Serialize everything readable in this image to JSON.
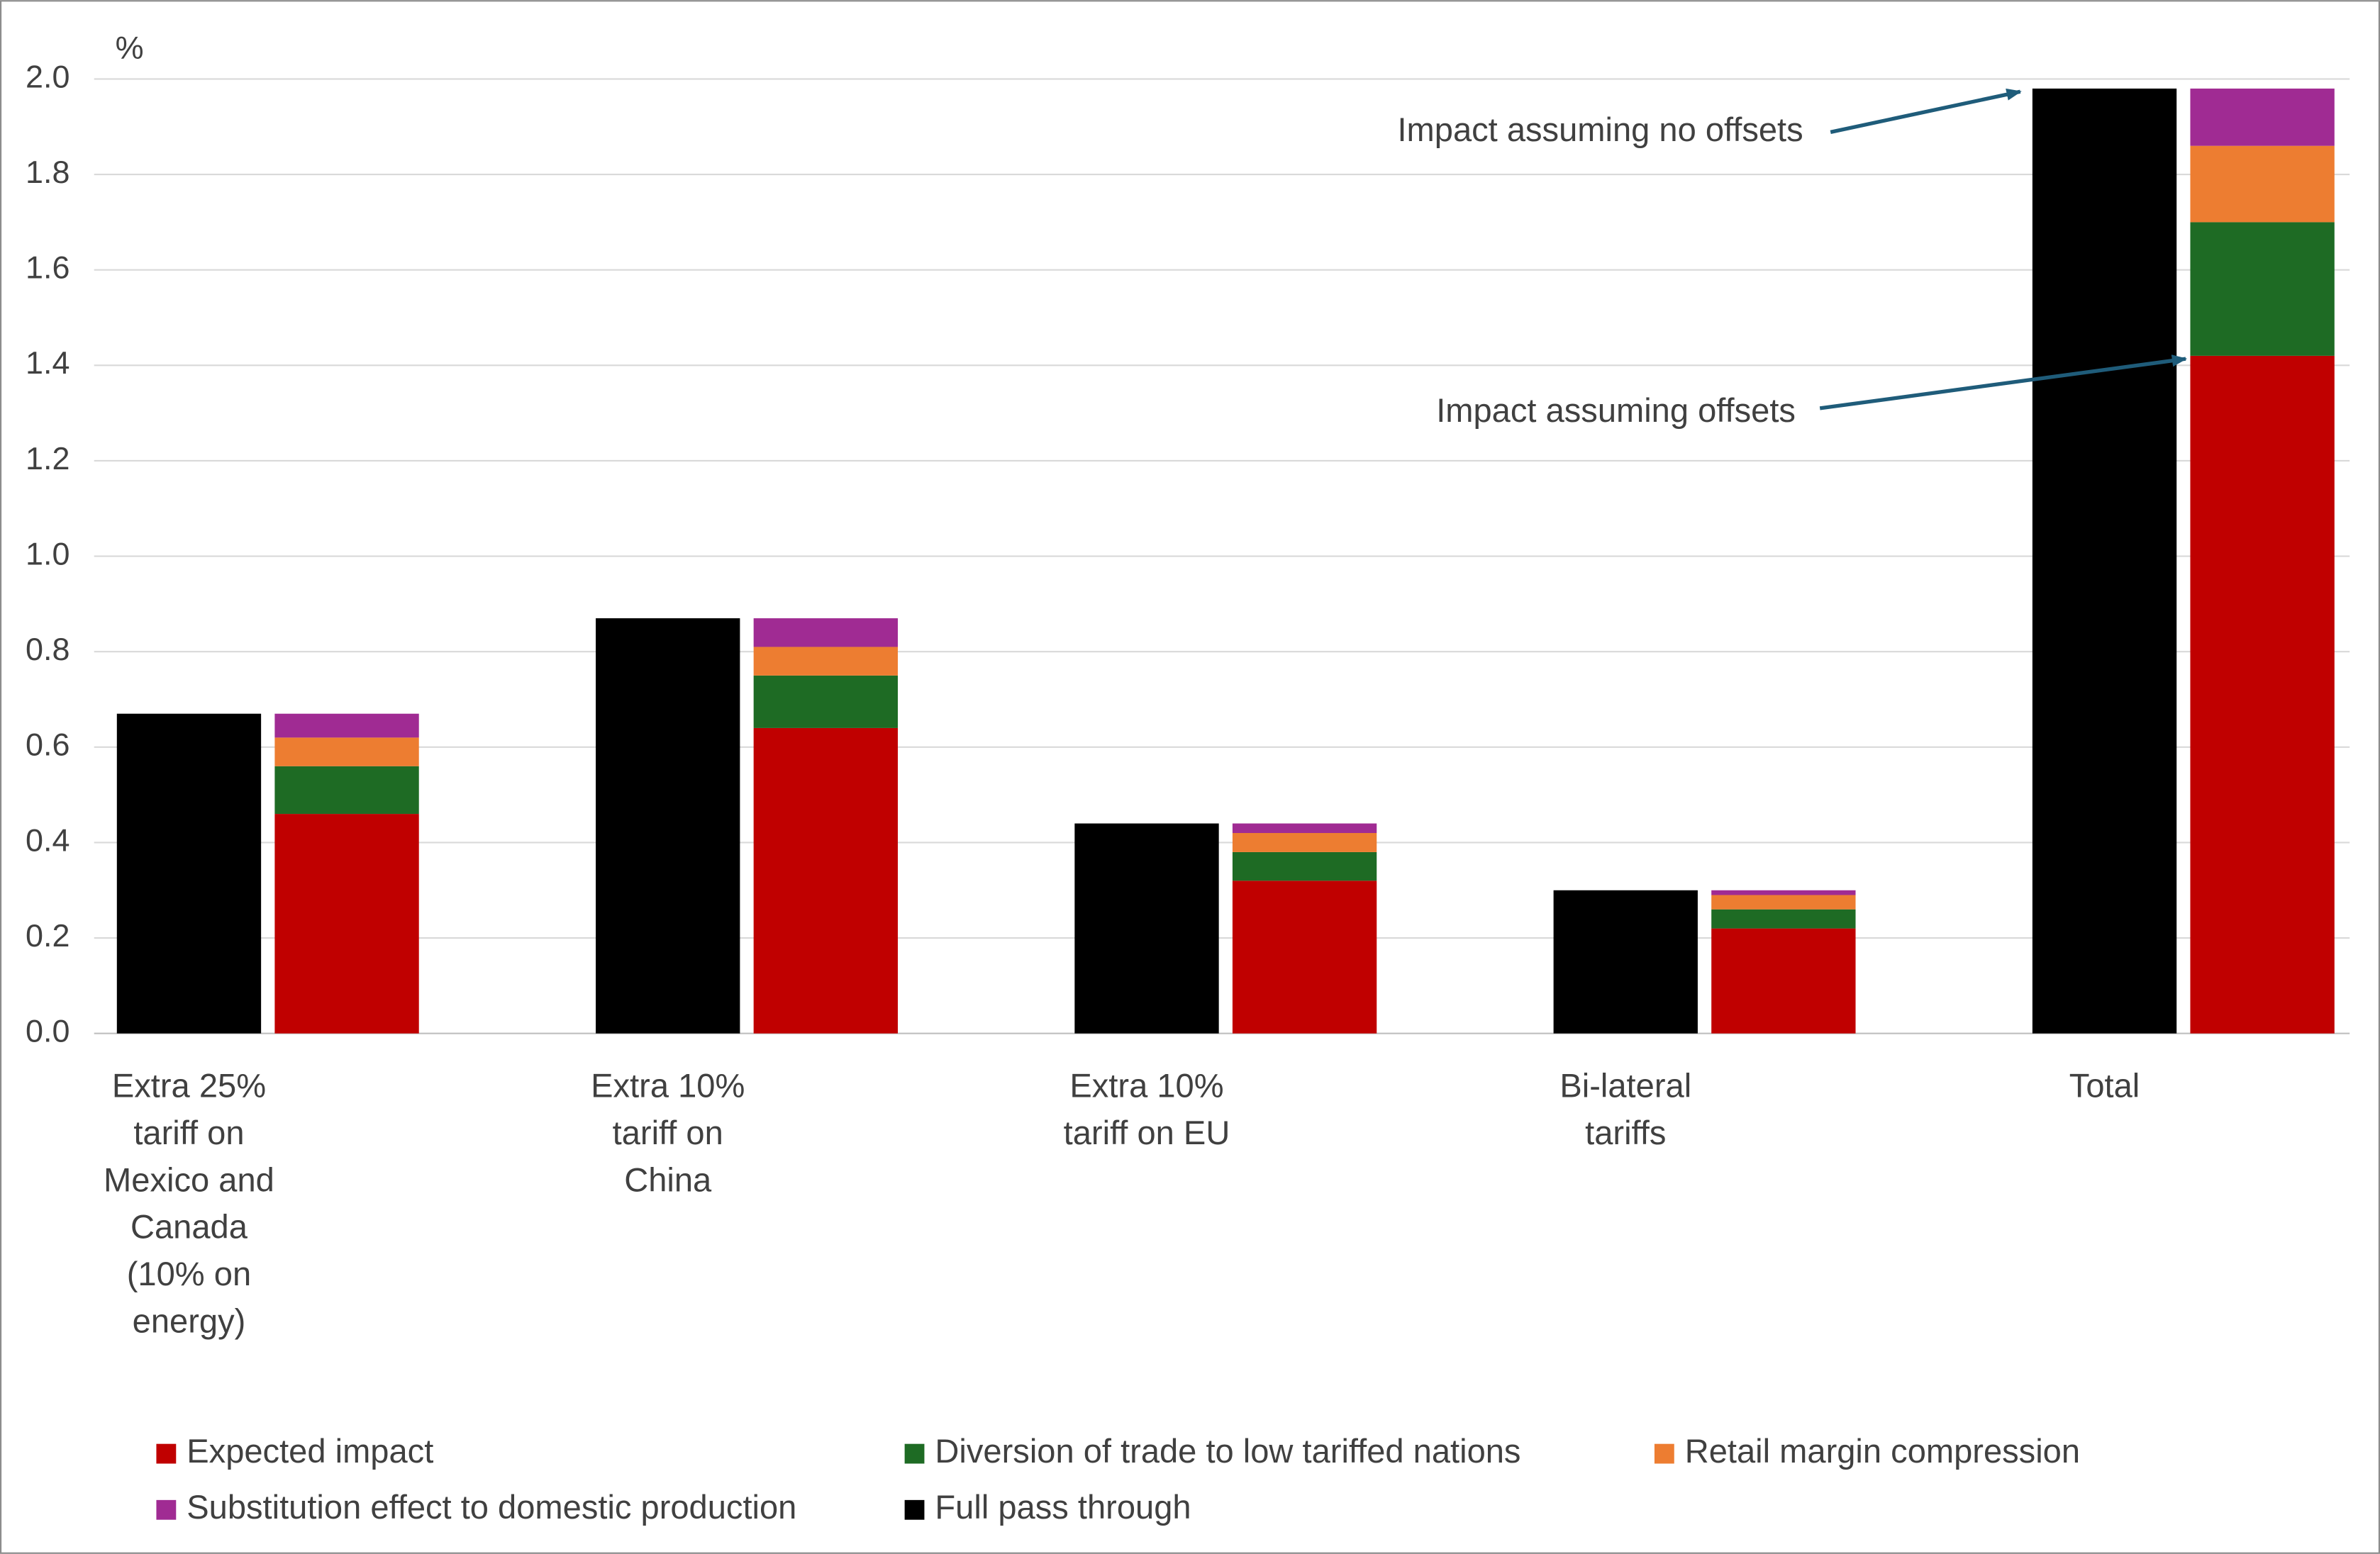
{
  "chart_data": {
    "type": "bar",
    "ylabel": "%",
    "categories": [
      "Extra 25% tariff on Mexico and Canada (10% on energy)",
      "Extra 10% tariff on China",
      "Extra 10% tariff on EU",
      "Bi-lateral tariffs",
      "Total"
    ],
    "series": [
      {
        "name": "Expected impact",
        "color": "#c00000",
        "values": [
          0.46,
          0.64,
          0.32,
          0.22,
          1.42
        ]
      },
      {
        "name": "Diversion of trade to low tariffed nations",
        "color": "#1e6b24",
        "values": [
          0.1,
          0.11,
          0.06,
          0.04,
          0.28
        ]
      },
      {
        "name": "Retail margin compression",
        "color": "#ed7d31",
        "values": [
          0.06,
          0.06,
          0.04,
          0.03,
          0.16
        ]
      },
      {
        "name": "Substitution effect to domestic production",
        "color": "#a02b93",
        "values": [
          0.05,
          0.06,
          0.02,
          0.01,
          0.12
        ]
      },
      {
        "name": "Full pass through",
        "color": "#000000",
        "values": [
          0.67,
          0.87,
          0.44,
          0.3,
          1.98
        ]
      }
    ],
    "ylim": [
      0,
      2.0
    ],
    "yticks": [
      {
        "value": 0,
        "label": "0.0"
      },
      0.2,
      0.4,
      0.6,
      0.8,
      {
        "value": 1,
        "label": "1.0"
      },
      1.2,
      1.4,
      1.6,
      1.8,
      {
        "value": 2,
        "label": "2.0"
      }
    ],
    "grid": true,
    "legend": "bottom",
    "annotations": [
      "Impact assuming no offsets",
      "Impact assuming offsets"
    ]
  }
}
